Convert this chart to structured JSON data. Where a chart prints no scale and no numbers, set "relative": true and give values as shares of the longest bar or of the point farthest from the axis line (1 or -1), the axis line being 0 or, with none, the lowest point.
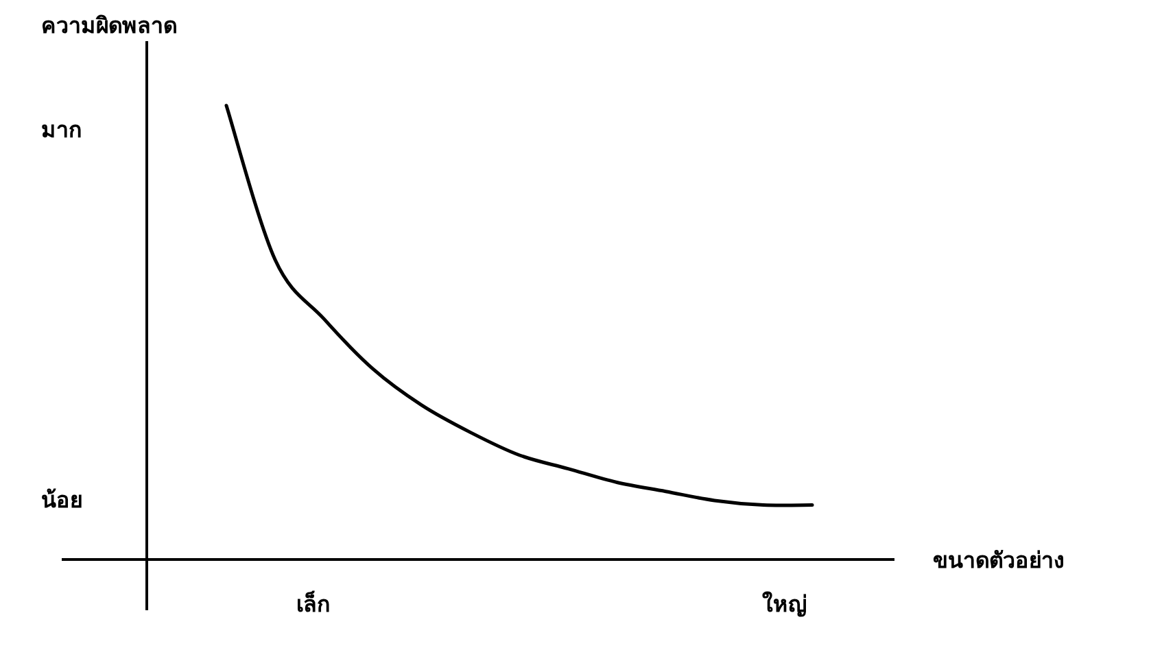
{
  "chart_data": {
    "type": "line",
    "relative": true,
    "ylabel": "ความผิดพลาด",
    "xlabel": "ขนาดตัวอย่าง",
    "annotations": [
      "มาก",
      "น้อย",
      "เล็ก",
      "ใหญ่"
    ],
    "categories": [
      null,
      null,
      null,
      null,
      null,
      null,
      null,
      null,
      null,
      null,
      null,
      null,
      null
    ],
    "series": [
      {
        "color": "#000000",
        "values": [
          1,
          0.66,
          0.53,
          0.42,
          0.34,
          0.28,
          0.23,
          0.2,
          0.17,
          0.15,
          0.13,
          0.12,
          0.12
        ]
      }
    ]
  }
}
